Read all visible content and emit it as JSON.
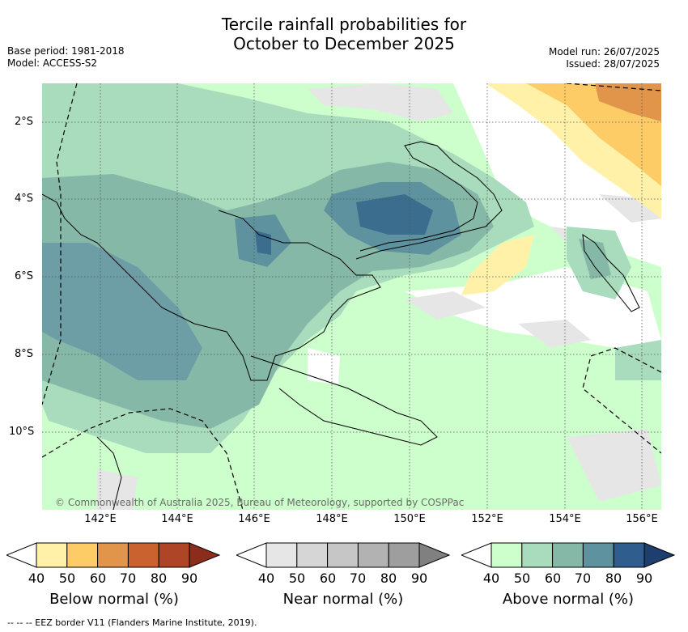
{
  "title_line1": "Tercile rainfall probabilities for",
  "title_line2": "October to December 2025",
  "meta_left": {
    "base_period": "Base period: 1981-2018",
    "model": "Model: ACCESS-S2"
  },
  "meta_right": {
    "model_run": "Model run: 26/07/2025",
    "issued": "Issued: 28/07/2025"
  },
  "lat_labels": [
    "2°S",
    "4°S",
    "6°S",
    "8°S",
    "10°S"
  ],
  "lon_labels": [
    "142°E",
    "144°E",
    "146°E",
    "148°E",
    "150°E",
    "152°E",
    "154°E",
    "156°E"
  ],
  "copyright": "© Commonwealth of Australia 2025, Bureau of Meteorology, supported by COSPPac",
  "colorbars": [
    {
      "title": "Below normal (%)",
      "ticks": [
        "40",
        "50",
        "60",
        "70",
        "80",
        "90"
      ],
      "colors": [
        "#fff2a8",
        "#fdcc66",
        "#e0954a",
        "#c9622e",
        "#ad4526",
        "#8c2d1c"
      ]
    },
    {
      "title": "Near normal (%)",
      "ticks": [
        "40",
        "50",
        "60",
        "70",
        "80",
        "90"
      ],
      "colors": [
        "#e6e6e6",
        "#d6d6d6",
        "#c6c6c6",
        "#b2b2b2",
        "#9e9e9e",
        "#808080"
      ]
    },
    {
      "title": "Above normal (%)",
      "ticks": [
        "40",
        "50",
        "60",
        "70",
        "80",
        "90"
      ],
      "colors": [
        "#ccffcc",
        "#a8dcbc",
        "#86b8a8",
        "#5e929e",
        "#2f5e8e",
        "#1d3e6e"
      ]
    }
  ],
  "eez_legend": "--  --  -- EEZ border V11 (Flanders Marine Institute, 2019)."
}
